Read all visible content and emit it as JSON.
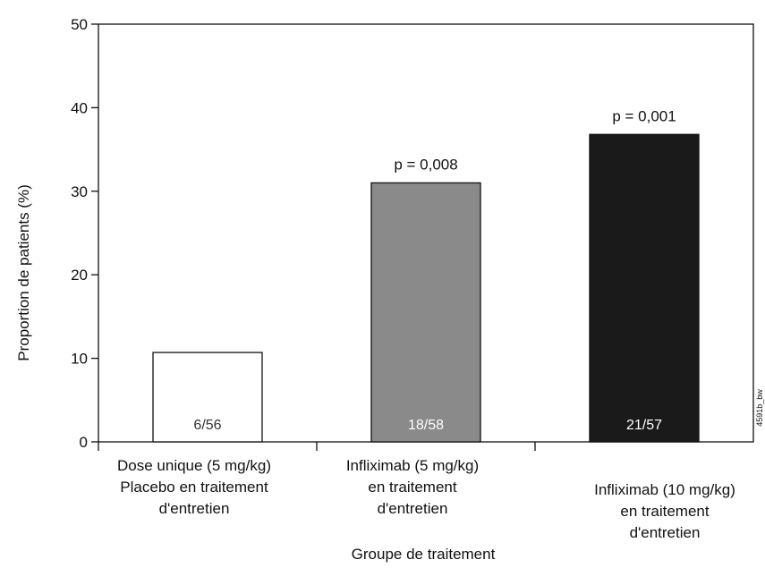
{
  "chart_data": {
    "type": "bar",
    "title": "",
    "xlabel": "Groupe de traitement",
    "ylabel": "Proportion de patients (%)",
    "ylim": [
      0,
      50
    ],
    "yticks": [
      0,
      10,
      20,
      30,
      40,
      50
    ],
    "grid": false,
    "categories": [
      [
        "Dose unique (5 mg/kg)",
        "Placebo en traitement",
        "d'entretien"
      ],
      [
        "Infliximab (5 mg/kg)",
        "en traitement",
        "d'entretien"
      ],
      [
        "Infliximab (10 mg/kg)",
        "en traitement",
        "d'entretien"
      ]
    ],
    "values": [
      10.7,
      31.0,
      36.8
    ],
    "bar_labels": [
      "6/56",
      "18/58",
      "21/57"
    ],
    "annotations": [
      "",
      "p = 0,008",
      "p = 0,001"
    ],
    "colors": [
      "#ffffff",
      "#8a8a8a",
      "#1a1a1a"
    ],
    "label_colors": [
      "#333333",
      "#ffffff",
      "#ffffff"
    ],
    "side_note": "4591b_bw"
  }
}
